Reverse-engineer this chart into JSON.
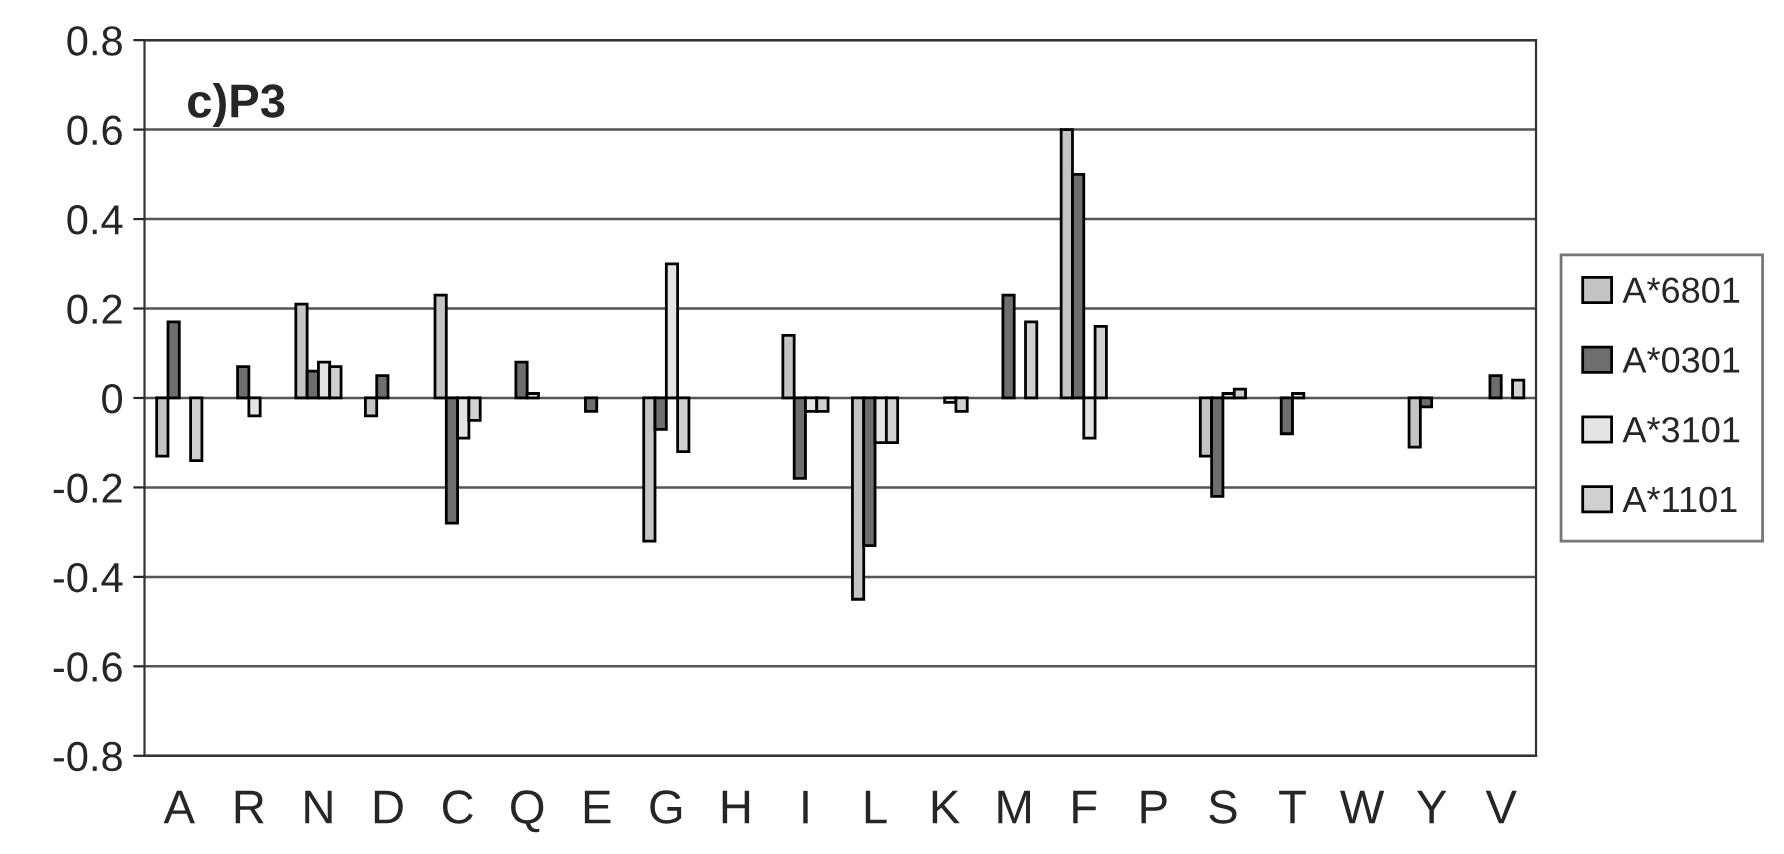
{
  "chart_data": {
    "type": "bar",
    "title": "c)P3",
    "categories": [
      "A",
      "R",
      "N",
      "D",
      "C",
      "Q",
      "E",
      "G",
      "H",
      "I",
      "L",
      "K",
      "M",
      "F",
      "P",
      "S",
      "T",
      "W",
      "Y",
      "V"
    ],
    "series": [
      {
        "name": "A*6801",
        "color": "#c4c4c4",
        "values": [
          -0.13,
          null,
          0.21,
          -0.04,
          0.23,
          null,
          null,
          -0.32,
          null,
          0.14,
          -0.45,
          null,
          null,
          0.6,
          null,
          -0.13,
          null,
          null,
          -0.11,
          null
        ]
      },
      {
        "name": "A*0301",
        "color": "#6e6e6e",
        "values": [
          0.17,
          0.07,
          0.06,
          0.05,
          -0.28,
          0.08,
          -0.03,
          -0.07,
          null,
          -0.18,
          -0.33,
          null,
          0.23,
          0.5,
          null,
          -0.22,
          -0.08,
          null,
          -0.02,
          0.05
        ]
      },
      {
        "name": "A*3101",
        "color": "#e4e4e4",
        "values": [
          null,
          -0.04,
          0.08,
          null,
          -0.09,
          0.01,
          null,
          0.3,
          null,
          -0.03,
          -0.1,
          -0.01,
          null,
          -0.09,
          null,
          0.01,
          0.01,
          null,
          null,
          null
        ]
      },
      {
        "name": "A*1101",
        "color": "#d0d0d0",
        "values": [
          -0.14,
          null,
          0.07,
          null,
          -0.05,
          null,
          null,
          -0.12,
          null,
          -0.03,
          -0.1,
          -0.03,
          0.17,
          0.16,
          null,
          0.02,
          null,
          null,
          null,
          0.04
        ]
      }
    ],
    "ylim": [
      -0.8,
      0.8
    ],
    "yticks": [
      -0.8,
      -0.6,
      -0.4,
      -0.2,
      0,
      0.2,
      0.4,
      0.6,
      0.8
    ],
    "grid": "y",
    "legend": "right"
  }
}
